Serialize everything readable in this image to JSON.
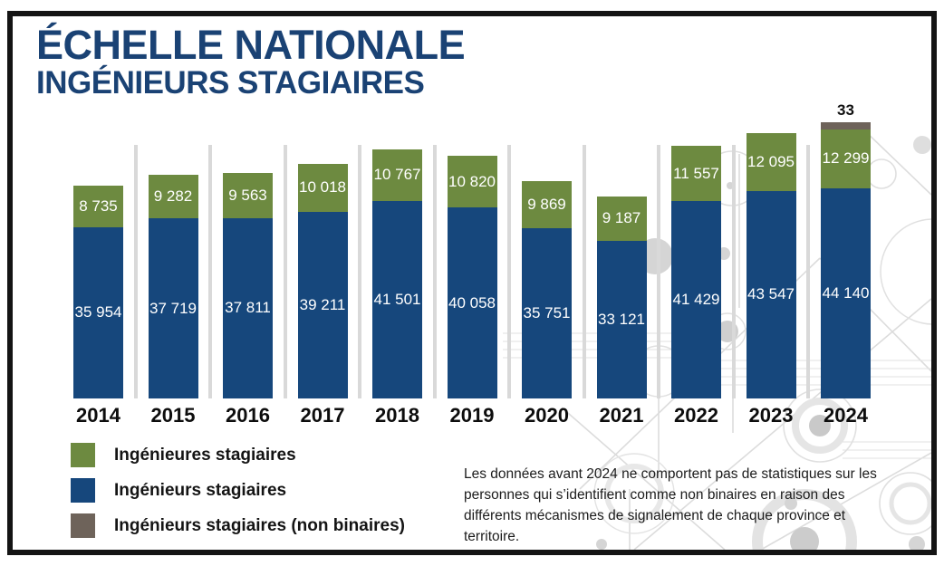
{
  "title": {
    "line1": "ÉCHELLE NATIONALE",
    "line2": "INGÉNIEURS STAGIAIRES"
  },
  "legend": {
    "items": [
      {
        "name": "female-interns",
        "label": "Ingénieures stagiaires",
        "color": "#6d8a40"
      },
      {
        "name": "male-interns",
        "label": "Ingénieurs stagiaires",
        "color": "#16477c"
      },
      {
        "name": "nonbinary-interns",
        "label": "Ingénieurs stagiaires (non binaires)",
        "color": "#6e635a"
      }
    ]
  },
  "note": "Les données avant 2024 ne comportent pas de statistiques sur les personnes qui s’identifient comme non binaires en raison des différents mécanismes de signalement de chaque province et territoire.",
  "colors": {
    "title_navy": "#1a4274",
    "bar_blue": "#16477c",
    "bar_green": "#6d8a40",
    "bar_gray": "#6e635a",
    "separator_gray": "#d9d9d9",
    "frame_black": "#141414"
  },
  "chart_data": {
    "type": "bar",
    "stacked": true,
    "title": "ÉCHELLE NATIONALE — INGÉNIEURS STAGIAIRES",
    "categories": [
      "2014",
      "2015",
      "2016",
      "2017",
      "2018",
      "2019",
      "2020",
      "2021",
      "2022",
      "2023",
      "2024"
    ],
    "series": [
      {
        "name": "Ingénieures stagiaires",
        "color": "#6d8a40",
        "values": [
          8735,
          9282,
          9563,
          10018,
          10767,
          10820,
          9869,
          9187,
          11557,
          12095,
          12299
        ]
      },
      {
        "name": "Ingénieurs stagiaires",
        "color": "#16477c",
        "values": [
          35954,
          37719,
          37811,
          39211,
          41501,
          40058,
          35751,
          33121,
          41429,
          43547,
          44140
        ]
      },
      {
        "name": "Ingénieurs stagiaires (non binaires)",
        "color": "#6e635a",
        "values": [
          null,
          null,
          null,
          null,
          null,
          null,
          null,
          null,
          null,
          null,
          33
        ]
      }
    ],
    "value_labels": "inside segments, white; non-binary value shown above bar in black",
    "xlabel": "",
    "ylabel": "",
    "axis": "none (no gridlines, no y-axis; light gray vertical separators between bars)",
    "legend_position": "bottom-left"
  }
}
